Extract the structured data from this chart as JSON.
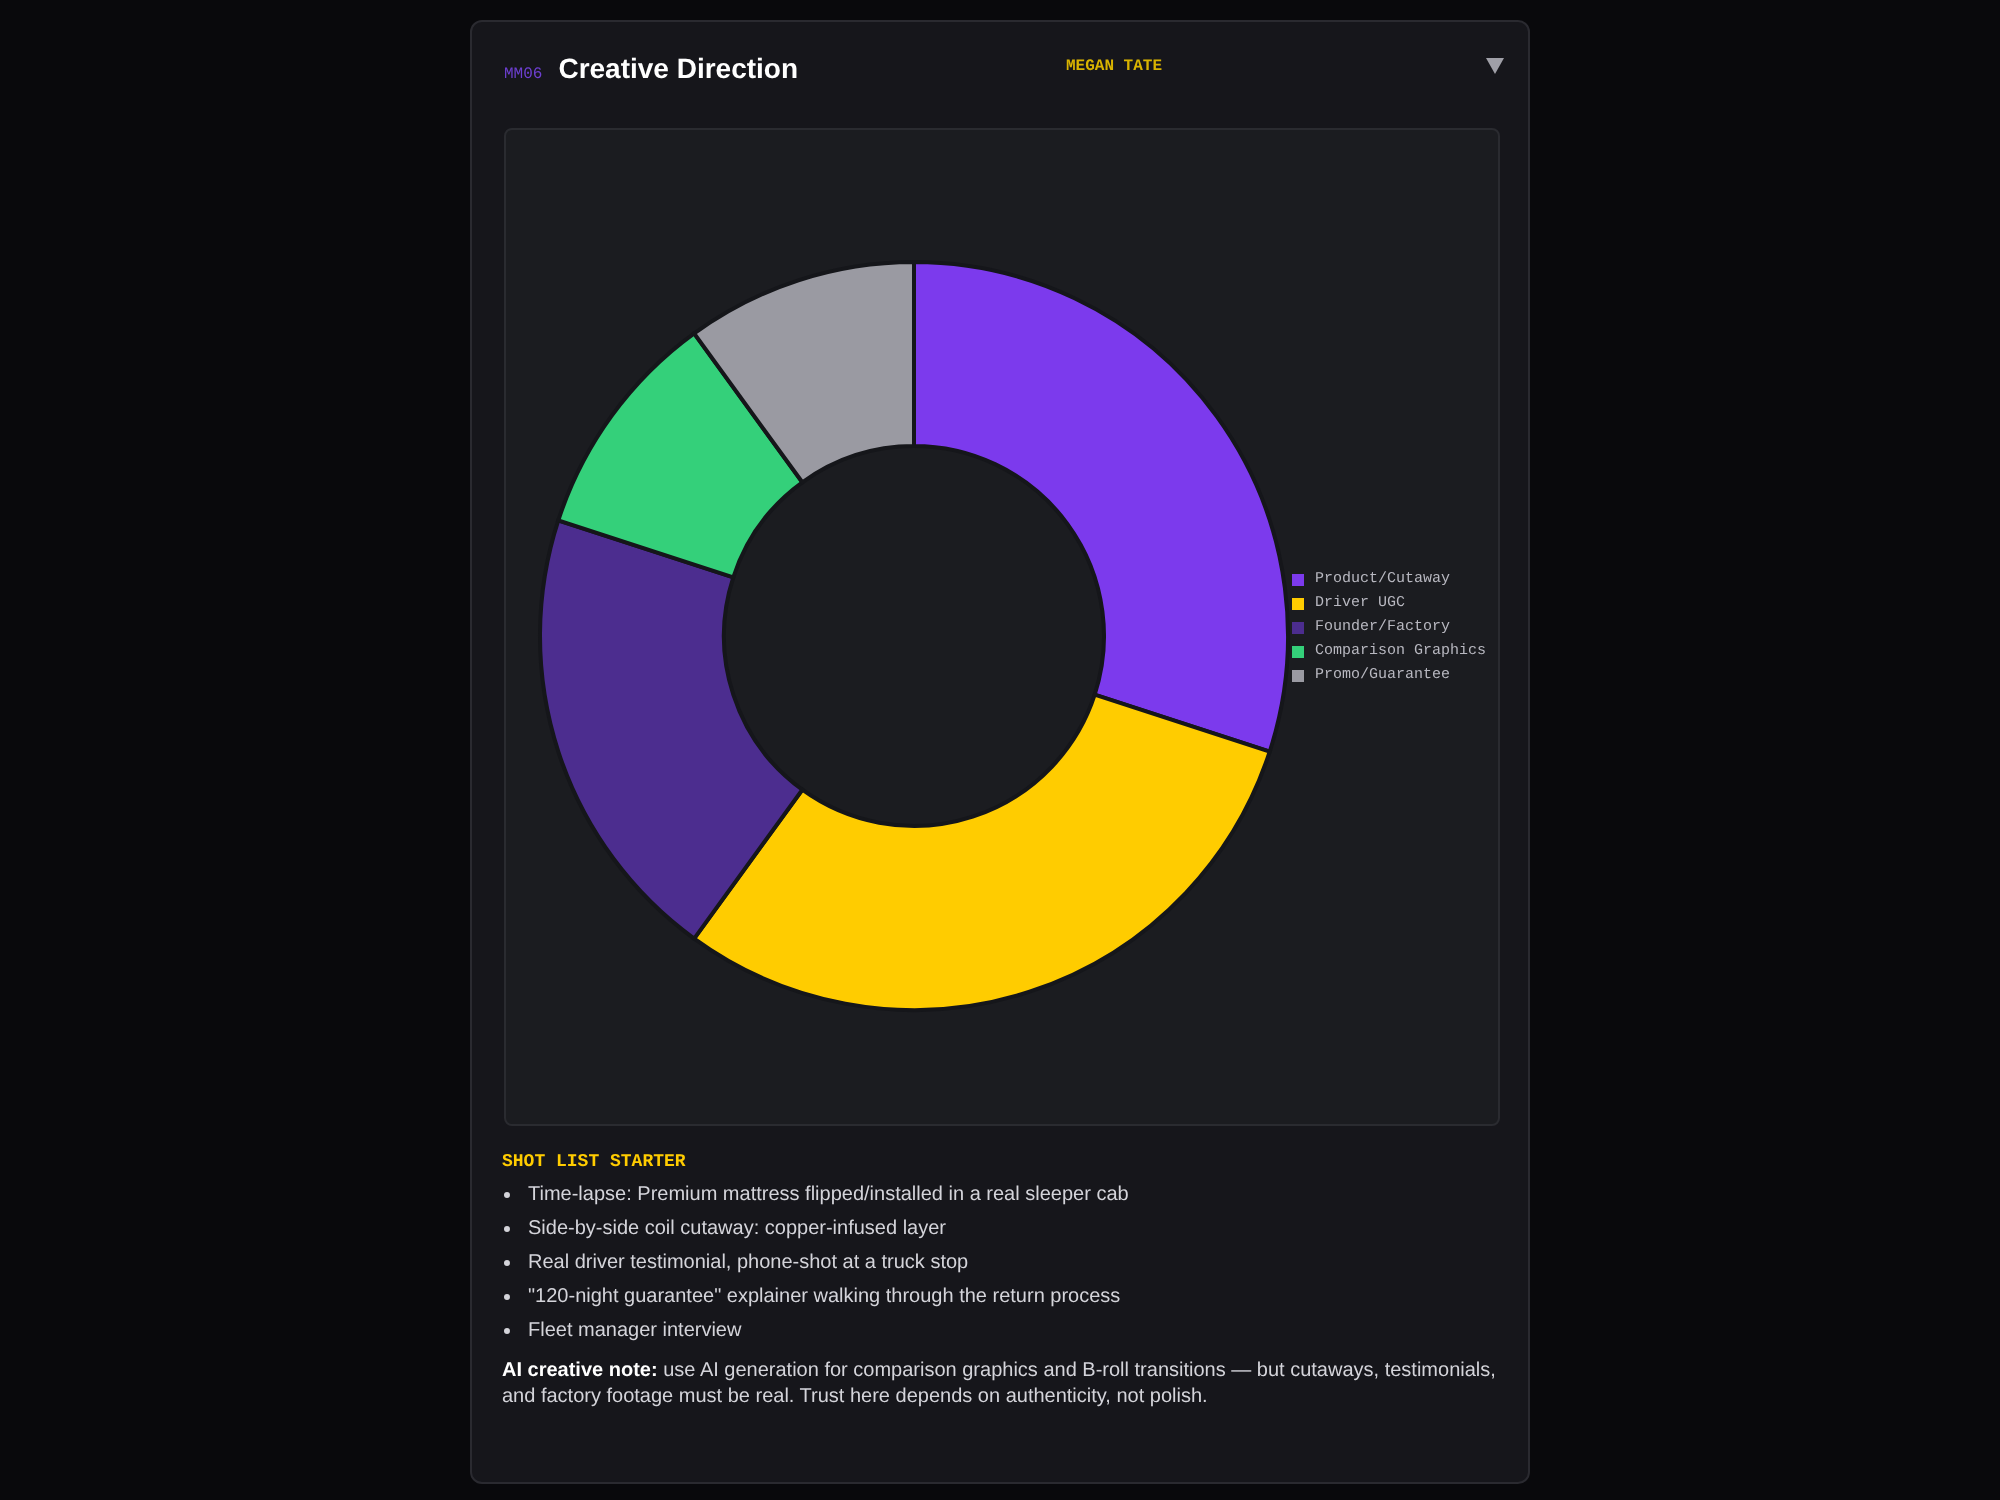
{
  "chart_data": {
    "type": "donut",
    "title": "Creative Direction",
    "subtitle": "MEGAN TATE",
    "categories": [
      "Product/Cutaway",
      "Driver UGC",
      "Founder/Factory",
      "Comparison Graphics",
      "Promo/Guarantee"
    ],
    "values": [
      30,
      30,
      20,
      10,
      10
    ],
    "colors": [
      "#7c3aed",
      "#ffcc00",
      "#4c2d8f",
      "#34d07a",
      "#9a9aa2"
    ],
    "legend": "right",
    "annotations": [
      "MM06",
      "SHOT LIST STARTER",
      "Time-lapse: Premium mattress flipped/installed in a real sleeper cab",
      "Side-by-side coil cutaway: copper-infused layer",
      "Real driver testimonial, phone-shot at a truck stop",
      "\"120-night guarantee\" explainer walking through the return process",
      "Fleet manager interview",
      "AI creative note:",
      "use AI generation for comparison graphics and B-roll transitions — but cutaways, testimonials, and factory footage must be real. Trust here depends on authenticity, not polish."
    ]
  }
}
